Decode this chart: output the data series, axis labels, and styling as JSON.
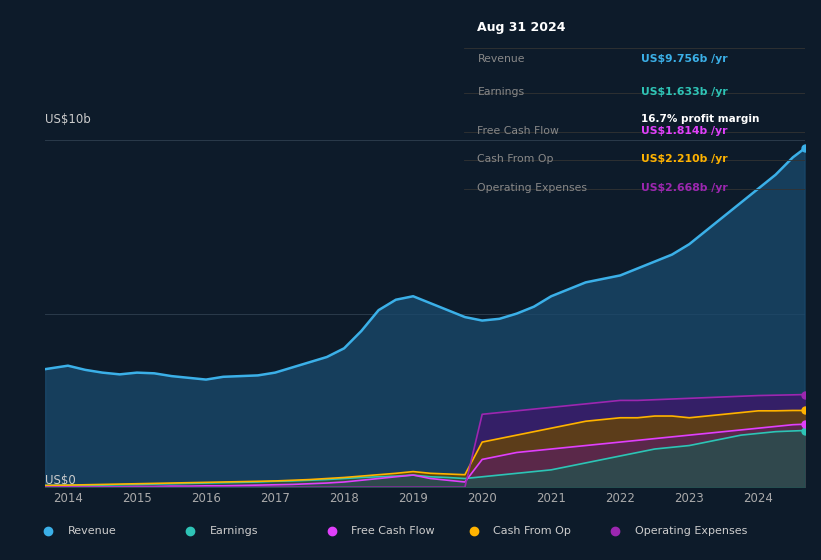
{
  "bg_color": "#0d1b2a",
  "plot_bg_color": "#0d1b2a",
  "title_date": "Aug 31 2024",
  "years": [
    2013.67,
    2014.0,
    2014.25,
    2014.5,
    2014.75,
    2015.0,
    2015.25,
    2015.5,
    2015.75,
    2016.0,
    2016.25,
    2016.5,
    2016.75,
    2017.0,
    2017.25,
    2017.5,
    2017.75,
    2018.0,
    2018.25,
    2018.5,
    2018.75,
    2019.0,
    2019.25,
    2019.5,
    2019.75,
    2020.0,
    2020.25,
    2020.5,
    2020.75,
    2021.0,
    2021.25,
    2021.5,
    2021.75,
    2022.0,
    2022.25,
    2022.5,
    2022.75,
    2023.0,
    2023.25,
    2023.5,
    2023.75,
    2024.0,
    2024.25,
    2024.5,
    2024.67
  ],
  "revenue": [
    3.4,
    3.5,
    3.38,
    3.3,
    3.25,
    3.3,
    3.28,
    3.2,
    3.15,
    3.1,
    3.18,
    3.2,
    3.22,
    3.3,
    3.45,
    3.6,
    3.75,
    4.0,
    4.5,
    5.1,
    5.4,
    5.5,
    5.3,
    5.1,
    4.9,
    4.8,
    4.85,
    5.0,
    5.2,
    5.5,
    5.7,
    5.9,
    6.0,
    6.1,
    6.3,
    6.5,
    6.7,
    7.0,
    7.4,
    7.8,
    8.2,
    8.6,
    9.0,
    9.5,
    9.756
  ],
  "earnings": [
    0.05,
    0.06,
    0.06,
    0.06,
    0.07,
    0.08,
    0.09,
    0.1,
    0.11,
    0.12,
    0.13,
    0.14,
    0.15,
    0.17,
    0.18,
    0.2,
    0.22,
    0.25,
    0.28,
    0.3,
    0.32,
    0.35,
    0.3,
    0.28,
    0.25,
    0.3,
    0.35,
    0.4,
    0.45,
    0.5,
    0.6,
    0.7,
    0.8,
    0.9,
    1.0,
    1.1,
    1.15,
    1.2,
    1.3,
    1.4,
    1.5,
    1.55,
    1.6,
    1.62,
    1.633
  ],
  "free_cash_flow": [
    0.0,
    0.01,
    0.01,
    0.01,
    0.01,
    0.02,
    0.02,
    0.03,
    0.03,
    0.04,
    0.04,
    0.05,
    0.06,
    0.07,
    0.08,
    0.1,
    0.12,
    0.15,
    0.2,
    0.25,
    0.3,
    0.35,
    0.25,
    0.2,
    0.15,
    0.8,
    0.9,
    1.0,
    1.05,
    1.1,
    1.15,
    1.2,
    1.25,
    1.3,
    1.35,
    1.4,
    1.45,
    1.5,
    1.55,
    1.6,
    1.65,
    1.7,
    1.75,
    1.8,
    1.814
  ],
  "cash_from_op": [
    0.05,
    0.06,
    0.07,
    0.08,
    0.09,
    0.1,
    0.11,
    0.12,
    0.13,
    0.14,
    0.15,
    0.16,
    0.17,
    0.18,
    0.2,
    0.22,
    0.25,
    0.28,
    0.32,
    0.36,
    0.4,
    0.45,
    0.4,
    0.38,
    0.36,
    1.3,
    1.4,
    1.5,
    1.6,
    1.7,
    1.8,
    1.9,
    1.95,
    2.0,
    2.0,
    2.05,
    2.05,
    2.0,
    2.05,
    2.1,
    2.15,
    2.2,
    2.2,
    2.21,
    2.21
  ],
  "operating_expenses": [
    0.0,
    0.0,
    0.0,
    0.0,
    0.0,
    0.0,
    0.0,
    0.0,
    0.0,
    0.0,
    0.0,
    0.0,
    0.0,
    0.0,
    0.0,
    0.0,
    0.0,
    0.0,
    0.0,
    0.0,
    0.0,
    0.0,
    0.0,
    0.0,
    0.0,
    2.1,
    2.15,
    2.2,
    2.25,
    2.3,
    2.35,
    2.4,
    2.45,
    2.5,
    2.5,
    2.52,
    2.54,
    2.56,
    2.58,
    2.6,
    2.62,
    2.64,
    2.65,
    2.66,
    2.668
  ],
  "colors": {
    "revenue": "#3bb0e8",
    "earnings": "#2ec4b6",
    "free_cash_flow": "#e040fb",
    "cash_from_op": "#ffb300",
    "operating_expenses": "#9c27b0"
  },
  "fill_colors": {
    "revenue": "#1a4a6e",
    "earnings": "#1a5a50",
    "free_cash_flow": "#5a1a6a",
    "cash_from_op": "#6a4800",
    "operating_expenses": "#3a1a6a"
  },
  "ylim": [
    0,
    10
  ],
  "xtick_years": [
    2014,
    2015,
    2016,
    2017,
    2018,
    2019,
    2020,
    2021,
    2022,
    2023,
    2024
  ],
  "info_rows": [
    {
      "label": "Revenue",
      "value": "US$9.756b /yr",
      "color": "#3bb0e8",
      "sub": null
    },
    {
      "label": "Earnings",
      "value": "US$1.633b /yr",
      "color": "#2ec4b6",
      "sub": "16.7% profit margin"
    },
    {
      "label": "Free Cash Flow",
      "value": "US$1.814b /yr",
      "color": "#e040fb",
      "sub": null
    },
    {
      "label": "Cash From Op",
      "value": "US$2.210b /yr",
      "color": "#ffb300",
      "sub": null
    },
    {
      "label": "Operating Expenses",
      "value": "US$2.668b /yr",
      "color": "#9c27b0",
      "sub": null
    }
  ],
  "legend": [
    {
      "label": "Revenue",
      "color": "#3bb0e8"
    },
    {
      "label": "Earnings",
      "color": "#2ec4b6"
    },
    {
      "label": "Free Cash Flow",
      "color": "#e040fb"
    },
    {
      "label": "Cash From Op",
      "color": "#ffb300"
    },
    {
      "label": "Operating Expenses",
      "color": "#9c27b0"
    }
  ]
}
